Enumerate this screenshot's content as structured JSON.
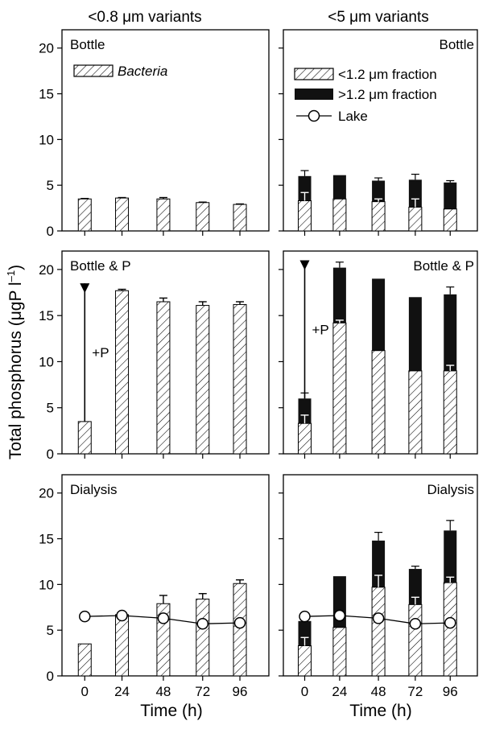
{
  "figure": {
    "ylabel_main": "Total phosphorus (μgP l",
    "ylabel_sup": "–1",
    "ylabel_tail": ")",
    "xlabel": "Time (h)",
    "x_ticks": [
      "0",
      "24",
      "48",
      "72",
      "96"
    ],
    "y_ticks": [
      "0",
      "5",
      "10",
      "15",
      "20"
    ],
    "column_titles": [
      "<0.8 μm variants",
      "<5 μm variants"
    ]
  },
  "legend_left": {
    "item": "Bacteria"
  },
  "legend_right": {
    "items": [
      "<1.2 μm fraction",
      ">1.2 μm fraction",
      "Lake"
    ]
  },
  "colors": {
    "hatch": "#000000",
    "solid": "#111111",
    "background": "#ffffff"
  },
  "chart_data": [
    {
      "type": "bar",
      "panel": "row1-left",
      "label": "Bottle",
      "categories": [
        0,
        24,
        48,
        72,
        96
      ],
      "ylim": [
        0,
        22
      ],
      "series": [
        {
          "name": "Bacteria",
          "values": [
            3.5,
            3.6,
            3.5,
            3.1,
            2.9
          ],
          "err": [
            0.05,
            0.05,
            0.15,
            0.05,
            0.05
          ]
        }
      ]
    },
    {
      "type": "bar",
      "panel": "row1-right",
      "label": "Bottle",
      "categories": [
        0,
        24,
        48,
        72,
        96
      ],
      "ylim": [
        0,
        22
      ],
      "series": [
        {
          "name": "<1.2 μm fraction",
          "values": [
            3.3,
            3.5,
            3.2,
            2.6,
            2.4
          ],
          "err": [
            0.9,
            0,
            0.3,
            0.9,
            0
          ]
        },
        {
          "name": ">1.2 μm fraction",
          "totals": [
            6.0,
            6.1,
            5.5,
            5.6,
            5.3
          ],
          "err": [
            0.6,
            0,
            0.3,
            0.6,
            0.2
          ]
        }
      ]
    },
    {
      "type": "bar",
      "panel": "row2-left",
      "label": "Bottle & P",
      "categories": [
        0,
        24,
        48,
        72,
        96
      ],
      "ylim": [
        0,
        22
      ],
      "annotation": {
        "text": "+P",
        "from": 3.5,
        "to": 18.5
      },
      "series": [
        {
          "name": "Bacteria",
          "values": [
            3.5,
            17.7,
            16.5,
            16.1,
            16.2
          ],
          "err": [
            0,
            0.15,
            0.4,
            0.4,
            0.3
          ]
        }
      ]
    },
    {
      "type": "bar",
      "panel": "row2-right",
      "label": "Bottle & P",
      "categories": [
        0,
        24,
        48,
        72,
        96
      ],
      "ylim": [
        0,
        22
      ],
      "annotation": {
        "text": "+P",
        "from": 6.0,
        "to": 21.0
      },
      "series": [
        {
          "name": "<1.2 μm fraction",
          "values": [
            3.3,
            14.2,
            11.2,
            9.0,
            9.0
          ],
          "err": [
            0.9,
            0.3,
            0,
            0,
            0.6
          ]
        },
        {
          "name": ">1.2 μm fraction",
          "totals": [
            6.0,
            20.2,
            19.0,
            17.0,
            17.3
          ],
          "err": [
            0.6,
            0.6,
            0,
            0,
            0.8
          ]
        }
      ]
    },
    {
      "type": "bar",
      "panel": "row3-left",
      "label": "Dialysis",
      "categories": [
        0,
        24,
        48,
        72,
        96
      ],
      "ylim": [
        0,
        22
      ],
      "series": [
        {
          "name": "Bacteria",
          "values": [
            3.5,
            6.7,
            7.9,
            8.4,
            10.1
          ],
          "err": [
            0,
            0,
            0.9,
            0.6,
            0.4
          ]
        },
        {
          "name": "Lake",
          "type": "line",
          "values": [
            6.5,
            6.6,
            6.3,
            5.7,
            5.8
          ]
        }
      ]
    },
    {
      "type": "bar",
      "panel": "row3-right",
      "label": "Dialysis",
      "categories": [
        0,
        24,
        48,
        72,
        96
      ],
      "ylim": [
        0,
        22
      ],
      "series": [
        {
          "name": "<1.2 μm fraction",
          "values": [
            3.3,
            5.3,
            9.7,
            7.8,
            10.2
          ],
          "err": [
            0.9,
            0,
            1.3,
            0.8,
            0.6
          ]
        },
        {
          "name": ">1.2 μm fraction",
          "totals": [
            6.0,
            10.9,
            14.8,
            11.7,
            15.9
          ],
          "err": [
            0,
            0,
            0.9,
            0.3,
            1.1
          ]
        },
        {
          "name": "Lake",
          "type": "line",
          "values": [
            6.5,
            6.6,
            6.3,
            5.7,
            5.8
          ]
        }
      ]
    }
  ]
}
